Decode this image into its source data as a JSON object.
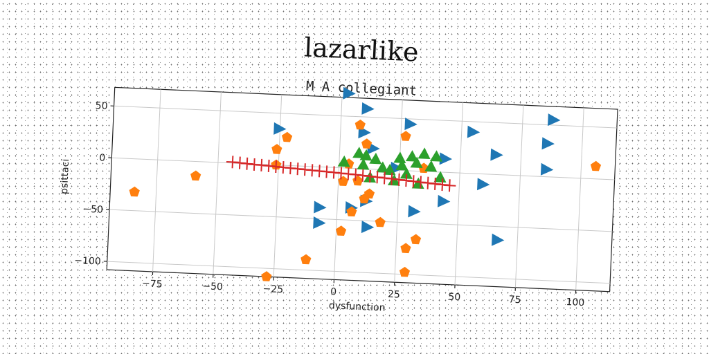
{
  "chart_data": {
    "type": "scatter",
    "title": "lazarlike",
    "subtitle": "M A collegiant",
    "xlabel": "dysfunction",
    "ylabel": "psittaci",
    "xlim": [
      -94,
      114
    ],
    "ylim": [
      -108,
      68
    ],
    "xticks": [
      -75,
      -50,
      -25,
      0,
      25,
      50,
      75,
      100
    ],
    "yticks": [
      -100,
      -50,
      0,
      50
    ],
    "xtick_labels": [
      "−75",
      "−50",
      "−25",
      "0",
      "25",
      "50",
      "75",
      "100"
    ],
    "ytick_labels": [
      "−100",
      "−50",
      "0",
      "50"
    ],
    "grid": true,
    "rotation_deg": 2.5,
    "series": [
      {
        "marker": "triangle-right",
        "color": "#1f77b4",
        "points": [
          [
            3,
            72
          ],
          [
            11,
            58
          ],
          [
            29,
            45
          ],
          [
            55,
            40
          ],
          [
            88,
            55
          ],
          [
            86,
            32
          ],
          [
            65,
            19
          ],
          [
            -25,
            35
          ],
          [
            10,
            35
          ],
          [
            14,
            20
          ],
          [
            44,
            13
          ],
          [
            86,
            7
          ],
          [
            24,
            2
          ],
          [
            60,
            -10
          ],
          [
            44,
            -28
          ],
          [
            -7,
            -39
          ],
          [
            -7,
            -54
          ],
          [
            6,
            -38
          ],
          [
            12,
            -31
          ],
          [
            32,
            -39
          ],
          [
            13,
            -56
          ],
          [
            67,
            -63
          ]
        ]
      },
      {
        "marker": "pentagon",
        "color": "#ff7f0e",
        "points": [
          [
            -84,
            -32
          ],
          [
            -59,
            -14
          ],
          [
            -26,
            15
          ],
          [
            -22,
            27
          ],
          [
            -26,
            0
          ],
          [
            -28,
            -108
          ],
          [
            -12,
            -90
          ],
          [
            8,
            42
          ],
          [
            11,
            24
          ],
          [
            4,
            4
          ],
          [
            27,
            33
          ],
          [
            35,
            3
          ],
          [
            2,
            -13
          ],
          [
            8,
            -12
          ],
          [
            11,
            -29
          ],
          [
            13,
            -24
          ],
          [
            6,
            -42
          ],
          [
            18,
            -51
          ],
          [
            2,
            -61
          ],
          [
            29,
            -75
          ],
          [
            33,
            -66
          ],
          [
            29,
            -98
          ],
          [
            106,
            12
          ]
        ]
      },
      {
        "marker": "triangle-up",
        "color": "#2ca02c",
        "points": [
          [
            2,
            6
          ],
          [
            8,
            15
          ],
          [
            10,
            4
          ],
          [
            15,
            10
          ],
          [
            18,
            2
          ],
          [
            21,
            0
          ],
          [
            25,
            12
          ],
          [
            26,
            5
          ],
          [
            30,
            14
          ],
          [
            32,
            8
          ],
          [
            35,
            17
          ],
          [
            38,
            5
          ],
          [
            40,
            15
          ],
          [
            42,
            -5
          ],
          [
            13,
            -8
          ],
          [
            23,
            -10
          ],
          [
            33,
            -12
          ],
          [
            11,
            13
          ],
          [
            28,
            -3
          ]
        ]
      },
      {
        "marker": "plus",
        "color": "#d62728",
        "points": [
          [
            -44,
            1
          ],
          [
            -41,
            0.5
          ],
          [
            -38,
            0
          ],
          [
            -35,
            -0.5
          ],
          [
            -32,
            -0.8
          ],
          [
            -29,
            -1.2
          ],
          [
            -26,
            -1.6
          ],
          [
            -23,
            -2
          ],
          [
            -20,
            -2.4
          ],
          [
            -17,
            -2.8
          ],
          [
            -14,
            -3.2
          ],
          [
            -11,
            -3.6
          ],
          [
            -8,
            -4
          ],
          [
            -5,
            -4.4
          ],
          [
            -2,
            -4.8
          ],
          [
            1,
            -5.2
          ],
          [
            4,
            -5.6
          ],
          [
            7,
            -6
          ],
          [
            10,
            -6.5
          ],
          [
            13,
            -7
          ],
          [
            16,
            -7.5
          ],
          [
            19,
            -8
          ],
          [
            22,
            -8.5
          ],
          [
            25,
            -9
          ],
          [
            28,
            -9.5
          ],
          [
            31,
            -10
          ],
          [
            34,
            -10.5
          ],
          [
            37,
            -11
          ],
          [
            40,
            -11.5
          ],
          [
            43,
            -12
          ],
          [
            46,
            -12.5
          ]
        ]
      }
    ]
  }
}
